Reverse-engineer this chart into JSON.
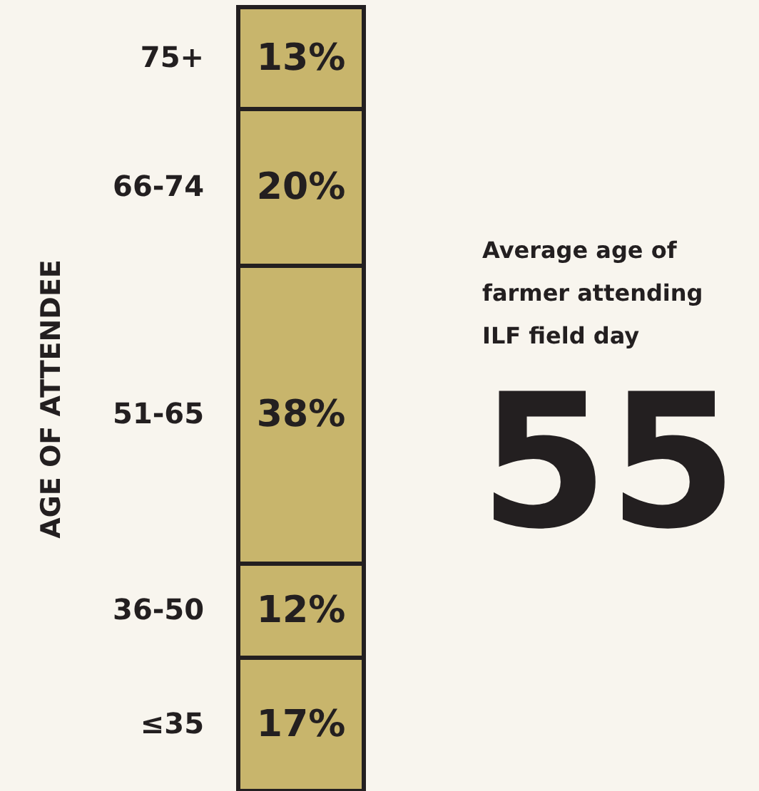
{
  "chart_data": {
    "type": "bar",
    "stacked": true,
    "categories": [
      null
    ],
    "series": [
      {
        "name": "≤35",
        "color": "#c8b56c",
        "values": [
          17
        ],
        "value_labels": [
          "17%"
        ]
      },
      {
        "name": "36-50",
        "color": "#c8b56c",
        "values": [
          12
        ],
        "value_labels": [
          "12%"
        ]
      },
      {
        "name": "51-65",
        "color": "#c8b56c",
        "values": [
          38
        ],
        "value_labels": [
          "38%"
        ]
      },
      {
        "name": "66-74",
        "color": "#c8b56c",
        "values": [
          20
        ],
        "value_labels": [
          "20%"
        ]
      },
      {
        "name": "75+",
        "color": "#c8b56c",
        "values": [
          13
        ],
        "value_labels": [
          "13%"
        ]
      }
    ],
    "ylim": [
      0,
      100
    ],
    "tick_labels": false,
    "annotations": [
      "AGE OF ATTENDEE",
      "Average age of farmer attending ILF field day",
      "55"
    ]
  }
}
